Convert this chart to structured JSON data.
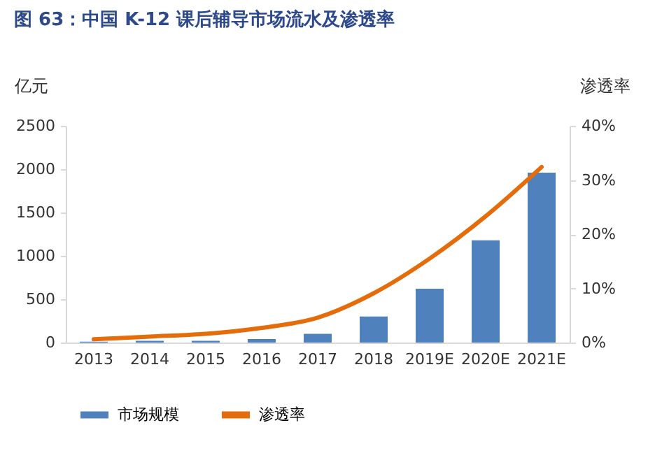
{
  "chart_data": {
    "type": "bar",
    "title": "图 63：中国 K-12 课后辅导市场流水及渗透率",
    "ylabel": "亿元",
    "y2label": "渗透率",
    "categories": [
      "2013",
      "2014",
      "2015",
      "2016",
      "2017",
      "2018",
      "2019E",
      "2020E",
      "2021E"
    ],
    "series": [
      {
        "name": "市场规模",
        "color": "#4f81bd",
        "values": [
          10,
          20,
          20,
          40,
          100,
          300,
          620,
          1180,
          1960
        ]
      },
      {
        "name": "渗透率",
        "type": "line",
        "axis": "y2",
        "color": "#e46c0a",
        "values": [
          0.6,
          1.1,
          1.6,
          2.7,
          4.6,
          9.1,
          15.5,
          23.3,
          32.4
        ]
      }
    ],
    "ylim": [
      0,
      2500
    ],
    "yticks": [
      0,
      500,
      1000,
      1500,
      2000,
      2500
    ],
    "y2lim": [
      0,
      40
    ],
    "y2ticks": [
      {
        "value": 0,
        "label": "0%"
      },
      {
        "value": 10,
        "label": "10%"
      },
      {
        "value": 20,
        "label": "20%"
      },
      {
        "value": 30,
        "label": "30%"
      },
      {
        "value": 40,
        "label": "40%"
      }
    ],
    "grid": false,
    "legend": "bottom"
  }
}
